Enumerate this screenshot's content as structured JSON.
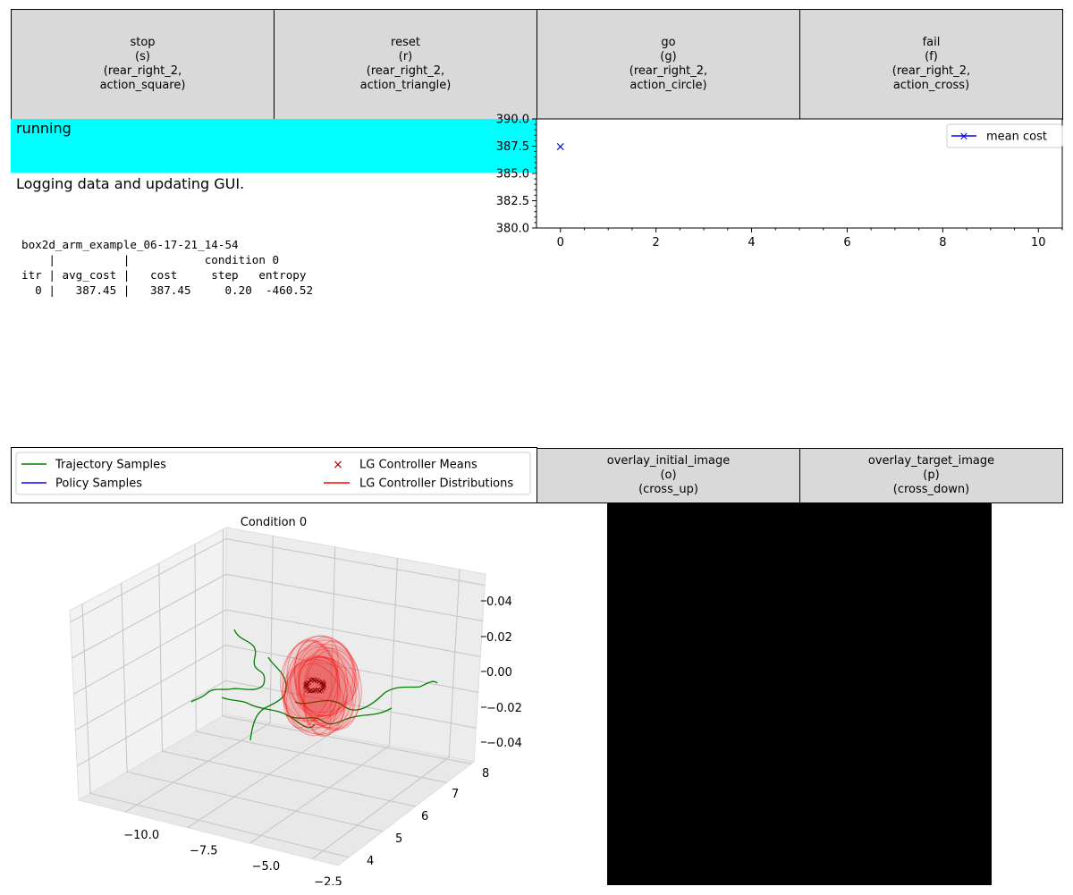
{
  "action_buttons": [
    {
      "lines": [
        "stop",
        "(s)",
        "(rear_right_2,",
        "action_square)"
      ]
    },
    {
      "lines": [
        "reset",
        "(r)",
        "(rear_right_2,",
        "action_triangle)"
      ]
    },
    {
      "lines": [
        "go",
        "(g)",
        "(rear_right_2,",
        "action_circle)"
      ]
    },
    {
      "lines": [
        "fail",
        "(f)",
        "(rear_right_2,",
        "action_cross)"
      ]
    }
  ],
  "overlay_buttons": [
    {
      "lines": [
        "overlay_initial_image",
        "(o)",
        "(cross_up)"
      ]
    },
    {
      "lines": [
        "overlay_target_image",
        "(p)",
        "(cross_down)"
      ]
    }
  ],
  "status": {
    "text": "running",
    "color": "#00ffff"
  },
  "action_status": {
    "text": "Logging data and updating GUI."
  },
  "output_log": {
    "lines": [
      "box2d_arm_example_06-17-21_14-54",
      "    |          |           condition 0",
      "itr | avg_cost |   cost     step   entropy",
      "  0 |   387.45 |   387.45     0.20  -460.52"
    ]
  },
  "chart_data": [
    {
      "type": "line",
      "series": [
        {
          "name": "mean cost",
          "x": [
            0
          ],
          "values": [
            387.45
          ],
          "color": "#0000ff",
          "marker": "x"
        }
      ],
      "xlim": [
        -0.5,
        10.5
      ],
      "ylim": [
        380.0,
        390.0
      ],
      "x_ticks": [
        "0",
        "2",
        "4",
        "6",
        "8",
        "10"
      ],
      "y_ticks": [
        "390.0",
        "387.5",
        "385.0",
        "382.5",
        "380.0"
      ],
      "legend": "top-right"
    },
    {
      "type": "line",
      "title": "Condition 0",
      "legend": "top",
      "legend_entries": [
        {
          "name": "Trajectory Samples",
          "color": "#008000",
          "marker": "line"
        },
        {
          "name": "Policy Samples",
          "color": "#0000ff",
          "marker": "line"
        },
        {
          "name": "LG Controller Means",
          "color": "#8b0000",
          "marker": "x"
        },
        {
          "name": "LG Controller Distributions",
          "color": "#ff0000",
          "marker": "line"
        }
      ],
      "x_ticks": [
        "−10.0",
        "−7.5",
        "−5.0",
        "−2.5"
      ],
      "y_ticks": [
        "4",
        "5",
        "6",
        "7",
        "8"
      ],
      "z_ticks": [
        "0.04",
        "0.02",
        "0.00",
        "−0.02",
        "−0.04"
      ],
      "grid": true
    }
  ]
}
